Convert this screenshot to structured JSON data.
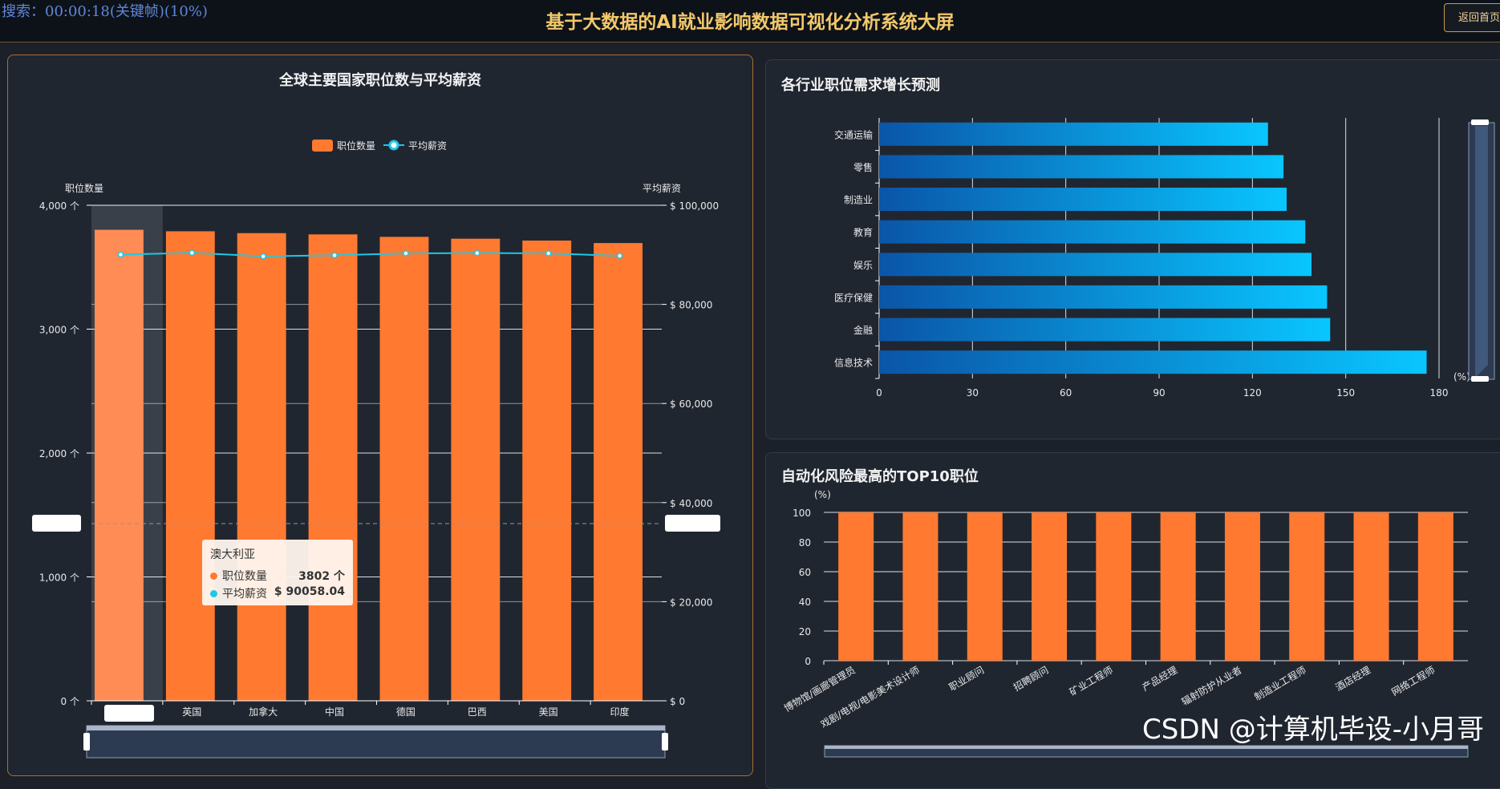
{
  "header": {
    "video_status": "搜索：00:00:18(关键帧)(10%)",
    "title": "基于大数据的AI就业影响数据可视化分析系统大屏",
    "back_button": "返回首页"
  },
  "panels": {
    "left_title": "全球主要国家职位数与平均薪资",
    "growth_title": "各行业职位需求增长预测",
    "risk_title": "自动化风险最高的TOP10职位"
  },
  "colors": {
    "bar_orange": "#ff7a30",
    "bar_highlight": "#ff8c55",
    "line_cyan": "#1ec7e6",
    "blue_dark": "#0a55a8",
    "blue_light": "#09c6ff",
    "title_gold": "#f2c86a"
  },
  "tooltip": {
    "country": "澳大利亚",
    "row1_label": "职位数量",
    "row1_value": "3802 个",
    "row2_label": "平均薪资",
    "row2_value": "$ 90058.04"
  },
  "watermark": "CSDN @计算机毕设-小月哥",
  "chart_data": [
    {
      "type": "bar",
      "title": "全球主要国家职位数与平均薪资",
      "categories": [
        "澳大利亚",
        "英国",
        "加拿大",
        "中国",
        "德国",
        "巴西",
        "美国",
        "印度"
      ],
      "visible_category_labels": [
        "澳",
        "英国",
        "加拿大",
        "中国",
        "德国",
        "巴西",
        "美国",
        "印度"
      ],
      "ylabel_left": "职位数量",
      "ylabel_right": "平均薪资",
      "ylim_left": [
        0,
        4000
      ],
      "ylim_right": [
        0,
        100000
      ],
      "yticks_left": [
        "0 个",
        "1,000 个",
        "2,000 个",
        "3,000 个",
        "4,000 个"
      ],
      "yticks_right": [
        "$ 0",
        "$ 20,000",
        "$ 40,000",
        "$ 60,000",
        "$ 80,000",
        "$ 100,000"
      ],
      "legend": [
        "职位数量",
        "平均薪资"
      ],
      "legend_position": "top-center",
      "highlighted_category": "澳大利亚",
      "series": [
        {
          "name": "职位数量",
          "type": "bar",
          "axis": "left",
          "values": [
            3802,
            3790,
            3775,
            3765,
            3745,
            3730,
            3715,
            3695
          ]
        },
        {
          "name": "平均薪资",
          "type": "line",
          "axis": "right",
          "values": [
            90058.04,
            90400,
            89700,
            89900,
            90300,
            90350,
            90300,
            89800
          ]
        }
      ]
    },
    {
      "type": "bar",
      "orientation": "horizontal",
      "title": "各行业职位需求增长预测",
      "categories": [
        "信息技术",
        "金融",
        "医疗保健",
        "娱乐",
        "教育",
        "制造业",
        "零售",
        "交通运输"
      ],
      "values": [
        176,
        145,
        144,
        139,
        137,
        131,
        130,
        125
      ],
      "xlabel": "(%)",
      "xlim": [
        0,
        180
      ],
      "xticks": [
        "0",
        "30",
        "60",
        "90",
        "120",
        "150",
        "180"
      ]
    },
    {
      "type": "bar",
      "title": "自动化风险最高的TOP10职位",
      "categories": [
        "博物馆/画廊管理员",
        "戏剧/电视/电影美术设计师",
        "职业顾问",
        "招聘顾问",
        "矿业工程师",
        "产品经理",
        "辐射防护从业者",
        "制造业工程师",
        "酒店经理",
        "网络工程师"
      ],
      "values": [
        100,
        100,
        100,
        100,
        100,
        100,
        100,
        100,
        100,
        100
      ],
      "ylabel": "(%)",
      "ylim": [
        0,
        100
      ],
      "yticks": [
        "0",
        "20",
        "40",
        "60",
        "80",
        "100"
      ]
    }
  ]
}
